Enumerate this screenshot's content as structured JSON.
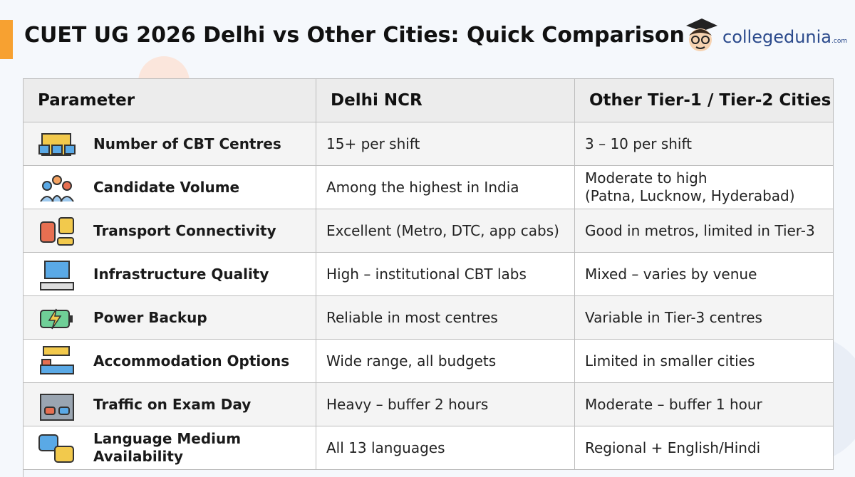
{
  "header": {
    "title": "CUET UG 2026 Delhi vs Other Cities: Quick Comparison",
    "brand": "collegedunia",
    "brand_suffix": ".com"
  },
  "table": {
    "columns": [
      "Parameter",
      "Delhi NCR",
      "Other Tier-1 / Tier-2 Cities"
    ],
    "rows": [
      [
        "Number of CBT Centres",
        "15+ per shift",
        "3 – 10 per shift"
      ],
      [
        "Candidate Volume",
        "Among the highest in India",
        "Moderate to high\n(Patna, Lucknow, Hyderabad)"
      ],
      [
        "Transport Connectivity",
        "Excellent (Metro, DTC, app cabs)",
        "Good in metros, limited in Tier-3"
      ],
      [
        "Infrastructure Quality",
        "High – institutional CBT labs",
        "Mixed – varies by venue"
      ],
      [
        "Power Backup",
        "Reliable in most centres",
        "Variable in Tier-3 centres"
      ],
      [
        "Accommodation Options",
        "Wide range, all budgets",
        "Limited in smaller cities"
      ],
      [
        "Traffic on Exam Day",
        "Heavy – buffer 2 hours",
        "Moderate – buffer 1 hour"
      ],
      [
        "Language Medium\nAvailability",
        "All 13 languages",
        "Regional + English/Hindi"
      ]
    ]
  }
}
